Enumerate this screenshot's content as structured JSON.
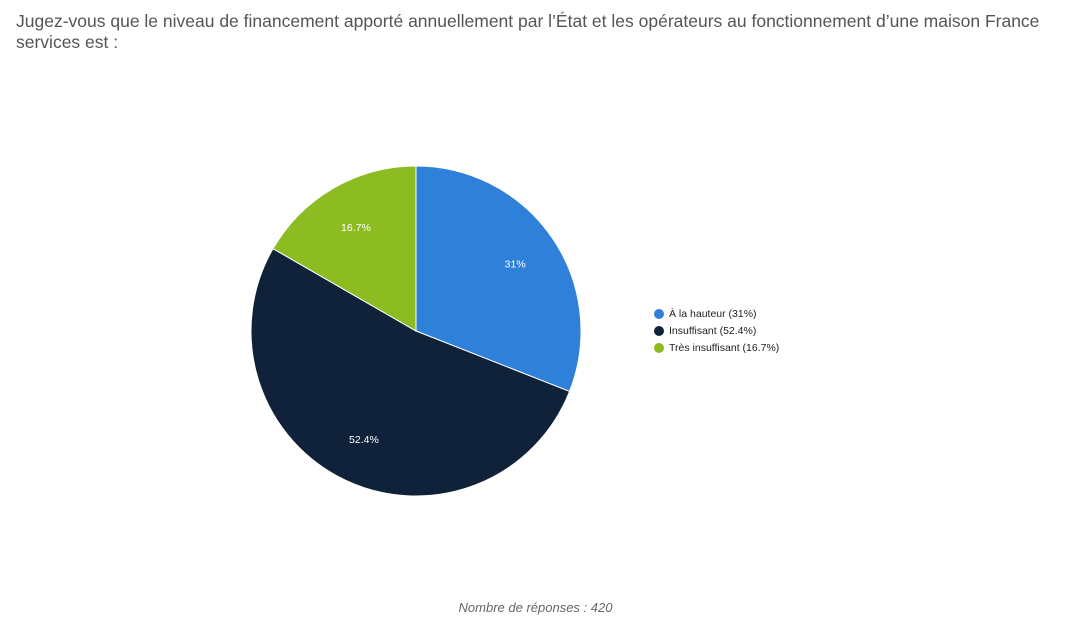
{
  "title": "Jugez-vous que le niveau de financement apporté annuellement par l’État et les opérateurs au fonctionnement d’une maison France services est :",
  "footer_note": "Nombre de réponses : 420",
  "chart_data": {
    "type": "pie",
    "title": "Jugez-vous que le niveau de financement apporté annuellement par l’État et les opérateurs au fonctionnement d’une maison France services est :",
    "categories": [
      "À la hauteur",
      "Insuffisant",
      "Très insuffisant"
    ],
    "values": [
      31,
      52.4,
      16.7
    ],
    "data_labels": [
      "31%",
      "52.4%",
      "16.7%"
    ],
    "legend_labels": [
      "À la hauteur (31%)",
      "Insuffisant (52.4%)",
      "Très insuffisant (16.7%)"
    ],
    "colors": [
      "#2f80d9",
      "#0f223a",
      "#8cbc22"
    ],
    "legend_position": "right",
    "start_angle": "top, clockwise"
  }
}
